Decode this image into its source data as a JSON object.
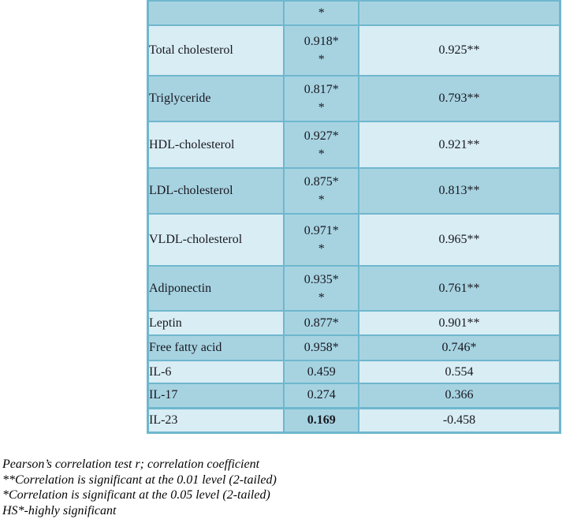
{
  "table": {
    "cutoff_row": {
      "label_fragment": "",
      "r1_fragment": "*",
      "r2_fragment": ""
    },
    "rows": [
      {
        "label": "Total cholesterol",
        "r1_line1": "0.918*",
        "r1_line2": "*",
        "r2": "0.925**"
      },
      {
        "label": "Triglyceride",
        "r1_line1": "0.817*",
        "r1_line2": "*",
        "r2": "0.793**"
      },
      {
        "label": "HDL-cholesterol",
        "r1_line1": "0.927*",
        "r1_line2": "*",
        "r2": "0.921**"
      },
      {
        "label": "LDL-cholesterol",
        "r1_line1": "0.875*",
        "r1_line2": "*",
        "r2": "0.813**"
      },
      {
        "label": "VLDL-cholesterol",
        "r1_line1": "0.971*",
        "r1_line2": "*",
        "r2": "0.965**"
      },
      {
        "label": "Adiponectin",
        "r1_line1": "0.935*",
        "r1_line2": "*",
        "r2": "0.761**"
      },
      {
        "label": "Leptin",
        "r1_line1": "0.877*",
        "r1_line2": "",
        "r2": "0.901**"
      },
      {
        "label": "Free fatty acid",
        "r1_line1": "0.958*",
        "r1_line2": "",
        "r2": "0.746*"
      },
      {
        "label": "IL-6",
        "r1_line1": "0.459",
        "r1_line2": "",
        "r2": "0.554"
      },
      {
        "label": "IL-17",
        "r1_line1": "0.274",
        "r1_line2": "",
        "r2": "0.366"
      },
      {
        "label": "IL-23",
        "r1_line1": "0.169",
        "r1_line2": "",
        "r2": "-0.458"
      }
    ]
  },
  "footnotes": {
    "line1": "Pearson’s correlation test r; correlation coefficient",
    "line2": "**Correlation is significant at the 0.01 level (2-tailed)",
    "line3": "*Correlation is significant at the 0.05 level (2-tailed)",
    "line4": "HS*-highly significant"
  },
  "colors": {
    "cell_dark": "#a7d3e1",
    "cell_light": "#d9edf4",
    "border": "#6fb7ce",
    "text": "#181820"
  }
}
